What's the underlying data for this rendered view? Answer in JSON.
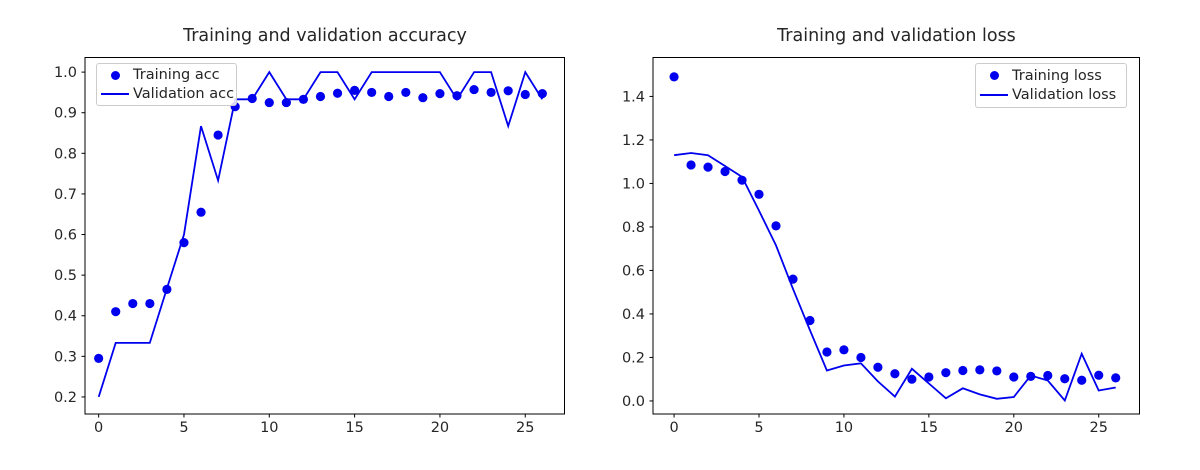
{
  "figure_background": "#ffffff",
  "accent_color": "#0000ee",
  "text_color": "#262626",
  "chart_data": [
    {
      "id": "acc",
      "type": "line",
      "title": "Training and validation accuracy",
      "xlabel": "",
      "ylabel": "",
      "legend_position": "upper left",
      "grid": false,
      "x": [
        0,
        1,
        2,
        3,
        4,
        5,
        6,
        7,
        8,
        9,
        10,
        11,
        12,
        13,
        14,
        15,
        16,
        17,
        18,
        19,
        20,
        21,
        22,
        23,
        24,
        25,
        26
      ],
      "xticks": [
        0,
        5,
        10,
        15,
        20,
        25
      ],
      "yticks": [
        0.2,
        0.3,
        0.4,
        0.5,
        0.6,
        0.7,
        0.8,
        0.9,
        1.0
      ],
      "xlim": [
        -0.8,
        27.3
      ],
      "ylim": [
        0.158,
        1.036
      ],
      "series": [
        {
          "name": "Training acc",
          "style": "dots",
          "color": "#0000ee",
          "values": [
            0.295,
            0.41,
            0.43,
            0.43,
            0.465,
            0.58,
            0.655,
            0.845,
            0.915,
            0.935,
            0.925,
            0.925,
            0.933,
            0.94,
            0.948,
            0.955,
            0.95,
            0.94,
            0.95,
            0.937,
            0.947,
            0.942,
            0.957,
            0.95,
            0.954,
            0.945,
            0.947
          ]
        },
        {
          "name": "Validation acc",
          "style": "line",
          "color": "#0000ee",
          "values": [
            0.2,
            0.333,
            0.333,
            0.333,
            0.467,
            0.6,
            0.867,
            0.733,
            0.933,
            0.933,
            1.0,
            0.933,
            0.933,
            1.0,
            1.0,
            0.933,
            1.0,
            1.0,
            1.0,
            1.0,
            1.0,
            0.933,
            1.0,
            1.0,
            0.867,
            1.0,
            0.933
          ]
        }
      ],
      "legend": [
        {
          "marker": "dot",
          "label": "Training acc"
        },
        {
          "marker": "line",
          "label": "Validation acc"
        }
      ]
    },
    {
      "id": "loss",
      "type": "line",
      "title": "Training and validation loss",
      "xlabel": "",
      "ylabel": "",
      "legend_position": "upper right",
      "grid": false,
      "x": [
        0,
        1,
        2,
        3,
        4,
        5,
        6,
        7,
        8,
        9,
        10,
        11,
        12,
        13,
        14,
        15,
        16,
        17,
        18,
        19,
        20,
        21,
        22,
        23,
        24,
        25,
        26
      ],
      "xticks": [
        0,
        5,
        10,
        15,
        20,
        25
      ],
      "yticks": [
        0.0,
        0.2,
        0.4,
        0.6,
        0.8,
        1.0,
        1.2,
        1.4
      ],
      "xlim": [
        -1.24,
        27.4
      ],
      "ylim": [
        -0.06,
        1.579
      ],
      "series": [
        {
          "name": "Training loss",
          "style": "dots",
          "color": "#0000ee",
          "values": [
            1.49,
            1.085,
            1.075,
            1.055,
            1.015,
            0.95,
            0.805,
            0.56,
            0.37,
            0.225,
            0.235,
            0.2,
            0.155,
            0.125,
            0.1,
            0.11,
            0.13,
            0.14,
            0.143,
            0.138,
            0.11,
            0.113,
            0.117,
            0.102,
            0.095,
            0.118,
            0.106
          ]
        },
        {
          "name": "Validation loss",
          "style": "line",
          "color": "#0000ee",
          "values": [
            1.13,
            1.14,
            1.13,
            1.08,
            1.03,
            0.875,
            0.715,
            0.515,
            0.325,
            0.14,
            0.163,
            0.173,
            0.09,
            0.02,
            0.148,
            0.08,
            0.012,
            0.058,
            0.03,
            0.01,
            0.018,
            0.117,
            0.094,
            0.002,
            0.217,
            0.048,
            0.062
          ]
        }
      ],
      "legend": [
        {
          "marker": "dot",
          "label": "Training loss"
        },
        {
          "marker": "line",
          "label": "Validation loss"
        }
      ]
    }
  ]
}
